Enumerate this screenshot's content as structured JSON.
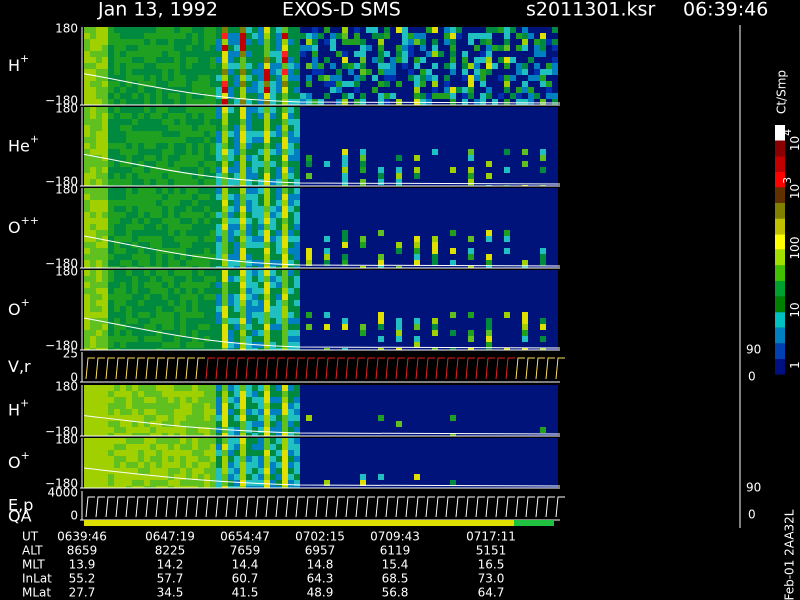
{
  "header": {
    "date": "Jan 13, 1992",
    "instrument": "EXOS-D SMS",
    "file": "s2011301.ksr",
    "time": "06:39:46"
  },
  "panels": [
    {
      "label": {
        "base": "H",
        "sup": "+"
      },
      "top": "180",
      "bottom": "−180"
    },
    {
      "label": {
        "base": "He",
        "sup": "+"
      },
      "top": "180",
      "bottom": "−180"
    },
    {
      "label": {
        "base": "O",
        "sup": "++"
      },
      "top": "180",
      "bottom": "−180"
    },
    {
      "label": {
        "base": "O",
        "sup": "+"
      },
      "top": "180",
      "bottom": "−180"
    },
    {
      "label": {
        "base": "V,r",
        "sup": ""
      },
      "top": "25",
      "bottom": "0",
      "right_top": "90",
      "right_bottom": "0"
    },
    {
      "label": {
        "base": "H",
        "sup": "+"
      },
      "top": "180",
      "bottom": "−180"
    },
    {
      "label": {
        "base": "O",
        "sup": "+"
      },
      "top": "180",
      "bottom": "−180"
    },
    {
      "label": {
        "base": "E,p",
        "sup": ""
      },
      "top": "4000",
      "bottom": "0",
      "right_top": "90",
      "right_bottom": "0"
    }
  ],
  "qa_label": "QA",
  "colorbar": {
    "unit": "Ct/Smp",
    "labels": [
      {
        "base": "10",
        "sup": "4"
      },
      {
        "base": "10",
        "sup": "3"
      },
      {
        "base": "100",
        "sup": ""
      },
      {
        "base": "10",
        "sup": ""
      },
      {
        "base": "1",
        "sup": ""
      }
    ]
  },
  "table": {
    "rows": [
      [
        "UT",
        "0639:46",
        "0647:19",
        "0654:47",
        "0702:15",
        "0709:43",
        "0717:11"
      ],
      [
        "ALT",
        "8659",
        "8225",
        "7659",
        "6957",
        "6119",
        "5151"
      ],
      [
        "MLT",
        "13.9",
        "14.2",
        "14.4",
        "14.8",
        "15.4",
        "16.5"
      ],
      [
        "InLat",
        "55.2",
        "57.7",
        "60.7",
        "64.3",
        "68.5",
        "73.0"
      ],
      [
        "MLat",
        "27.7",
        "34.5",
        "41.5",
        "48.9",
        "56.8",
        "64.7"
      ]
    ]
  },
  "footer": "Feb-01 2AA32L"
}
